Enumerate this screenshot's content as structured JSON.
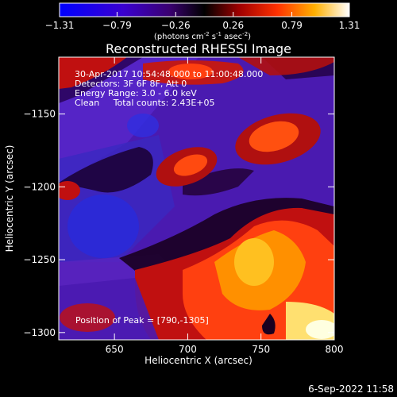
{
  "chart_data": {
    "type": "heatmap",
    "title": "Reconstructed RHESSI Image",
    "xlabel": "Heliocentric X (arcsec)",
    "ylabel": "Heliocentric Y (arcsec)",
    "xlim": [
      612,
      800
    ],
    "ylim": [
      -1305,
      -1111
    ],
    "x_ticks": [
      "650",
      "700",
      "750",
      "800"
    ],
    "y_ticks": [
      "-1150",
      "-1200",
      "-1250",
      "-1300"
    ],
    "x_tick_values": [
      650,
      700,
      750,
      800
    ],
    "y_tick_values": [
      -1150,
      -1200,
      -1250,
      -1300
    ],
    "colorbar": {
      "ticks": [
        "-1.31",
        "-0.79",
        "-0.26",
        "0.26",
        "0.79",
        "1.31"
      ],
      "tick_values": [
        -1.31,
        -0.79,
        -0.26,
        0.26,
        0.79,
        1.31
      ],
      "range": [
        -1.31,
        1.31
      ],
      "label_main": "(photons cm",
      "label_sup1": "-2",
      "label_mid1": " s",
      "label_sup2": "-1",
      "label_mid2": " asec",
      "label_sup3": "-2",
      "label_end": ")"
    },
    "annotations": [
      "30-Apr-2017 10:54:48.000 to 11:00:48.000",
      "Detectors: 3F 6F 8F, Att 0",
      "Energy Range: 3.0 - 6.0 keV",
      "Clean     Total counts: 2.43E+05"
    ],
    "peak_label": "Position of Peak = [790,-1305]",
    "peak": [
      790,
      -1305
    ],
    "colormap": "blue-purple-red-yellow-white"
  },
  "footer_date": "6-Sep-2022 11:58"
}
